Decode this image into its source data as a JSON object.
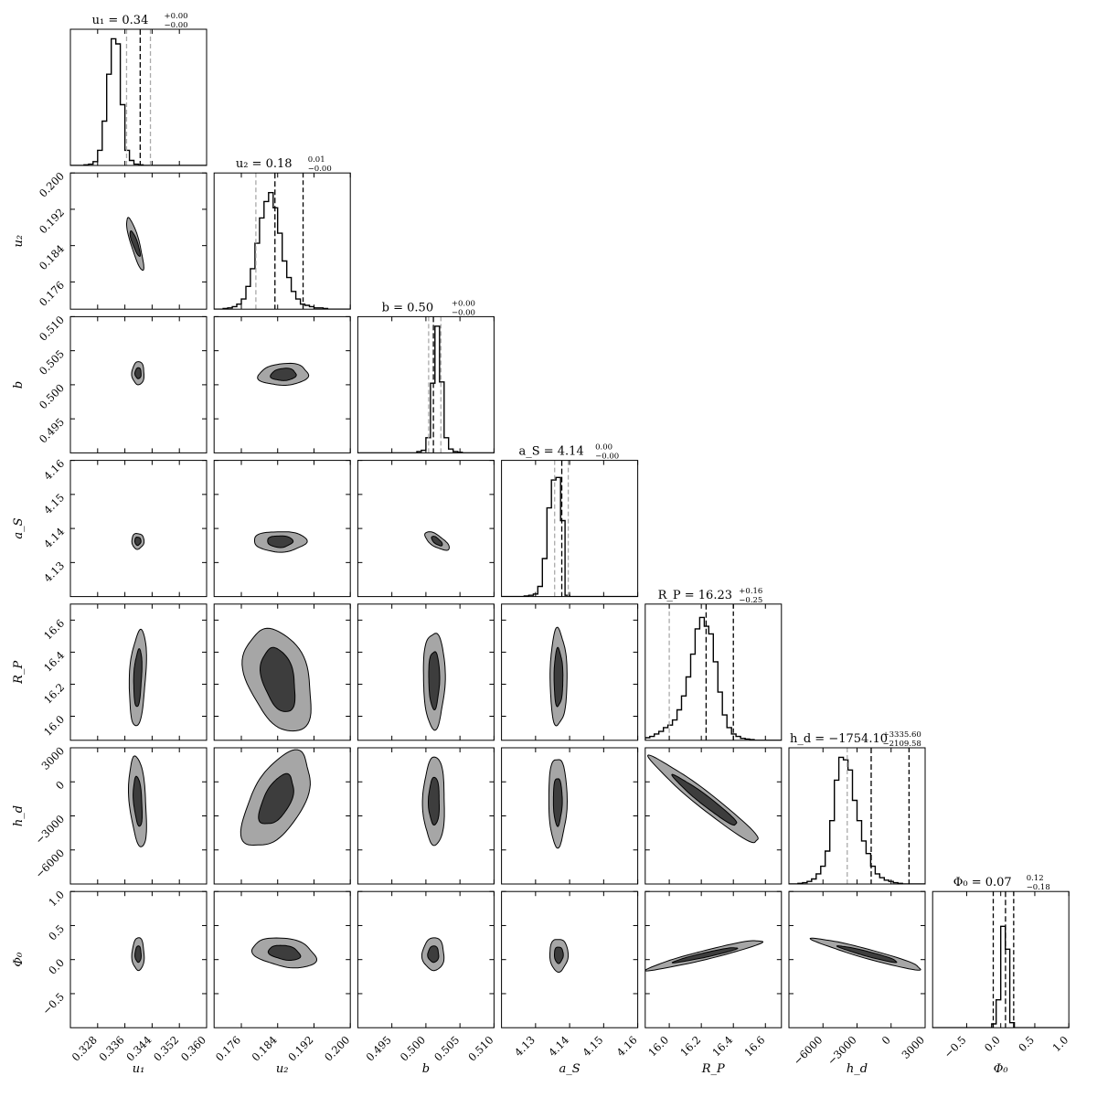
{
  "chart_data": {
    "type": "corner",
    "parameters": [
      {
        "key": "u1",
        "axis_label": "u₁",
        "range": [
          0.32,
          0.36
        ],
        "ticks": [
          "0.328",
          "0.336",
          "0.344",
          "0.352",
          "0.360"
        ],
        "tick_values": [
          0.328,
          0.336,
          0.344,
          0.352,
          0.36
        ],
        "median": 0.34,
        "title": {
          "text": "u₁ = 0.34",
          "plus": "+0.00",
          "minus": "−0.00"
        },
        "marker_lines": {
          "solid_black": [
            0.3405
          ],
          "dashed_gray": [
            0.3365,
            0.3435
          ]
        },
        "histogram": [
          0,
          0,
          0,
          0.005,
          0.01,
          0.03,
          0.12,
          0.35,
          0.72,
          1.0,
          0.96,
          0.48,
          0.12,
          0.04,
          0.01,
          0.005,
          0,
          0,
          0,
          0,
          0,
          0,
          0,
          0,
          0,
          0,
          0,
          0,
          0,
          0
        ]
      },
      {
        "key": "u2",
        "axis_label": "u₂",
        "range": [
          0.17,
          0.2
        ],
        "ticks": [
          "0.176",
          "0.184",
          "0.192",
          "0.200"
        ],
        "tick_values": [
          0.176,
          0.184,
          0.192,
          0.2
        ],
        "median": 0.18,
        "title": {
          "text": "u₂ = 0.18",
          "plus": "0.01",
          "minus": "−0.00"
        },
        "marker_lines": {
          "solid_black": [
            0.1834
          ],
          "dashed_gray": [
            0.1792
          ],
          "dashed_black": [
            0.1896
          ]
        },
        "histogram": [
          0,
          0,
          0.005,
          0.01,
          0.02,
          0.04,
          0.08,
          0.18,
          0.32,
          0.52,
          0.72,
          0.85,
          0.92,
          0.8,
          0.6,
          0.38,
          0.25,
          0.14,
          0.08,
          0.04,
          0.03,
          0.02,
          0.01,
          0.01,
          0.005,
          0,
          0,
          0,
          0,
          0
        ]
      },
      {
        "key": "b",
        "axis_label": "b",
        "range": [
          0.49,
          0.51
        ],
        "ticks": [
          "0.495",
          "0.500",
          "0.505",
          "0.510"
        ],
        "tick_values": [
          0.495,
          0.5,
          0.505,
          0.51
        ],
        "median": 0.5,
        "title": {
          "text": "b = 0.50",
          "plus": "+0.00",
          "minus": "−0.00"
        },
        "marker_lines": {
          "solid_black": [
            0.5011
          ],
          "dashed_gray": [
            0.5004,
            0.5022
          ]
        },
        "histogram": [
          0,
          0,
          0,
          0,
          0,
          0,
          0,
          0,
          0,
          0,
          0,
          0,
          0,
          0.01,
          0.02,
          0.12,
          0.55,
          1.0,
          0.56,
          0.12,
          0.03,
          0.01,
          0.005,
          0,
          0,
          0,
          0,
          0,
          0,
          0
        ]
      },
      {
        "key": "aS",
        "axis_label": "a_S",
        "range": [
          4.12,
          4.16
        ],
        "ticks": [
          "4.13",
          "4.14",
          "4.15",
          "4.16"
        ],
        "tick_values": [
          4.13,
          4.14,
          4.15,
          4.16
        ],
        "median": 4.14,
        "title": {
          "text": "a_S = 4.14",
          "plus": "0.00",
          "minus": "−0.00"
        },
        "marker_lines": {
          "solid_black": [
            4.1377
          ],
          "dashed_gray": [
            4.1356,
            4.1396
          ]
        },
        "histogram": [
          0,
          0,
          0,
          0,
          0,
          0.005,
          0.01,
          0.02,
          0.08,
          0.3,
          0.7,
          0.92,
          0.94,
          0.6,
          0.01,
          0,
          0,
          0,
          0,
          0,
          0,
          0,
          0,
          0,
          0,
          0,
          0,
          0,
          0,
          0
        ]
      },
      {
        "key": "RP",
        "axis_label": "R_P",
        "range": [
          15.85,
          16.7
        ],
        "ticks": [
          "16.0",
          "16.2",
          "16.4",
          "16.6"
        ],
        "tick_values": [
          16.0,
          16.2,
          16.4,
          16.6
        ],
        "median": 16.23,
        "title": {
          "text": "R_P = 16.23",
          "plus": "+0.16",
          "minus": "−0.25"
        },
        "marker_lines": {
          "solid_black": [
            16.23
          ],
          "dashed_gray": [
            16.0
          ],
          "dashed_black": [
            16.4
          ]
        },
        "histogram": [
          0.02,
          0.03,
          0.05,
          0.07,
          0.1,
          0.12,
          0.16,
          0.24,
          0.35,
          0.5,
          0.68,
          0.88,
          0.97,
          0.9,
          0.84,
          0.62,
          0.38,
          0.2,
          0.1,
          0.05,
          0.03,
          0.015,
          0.01,
          0.005,
          0,
          0,
          0,
          0,
          0,
          0
        ]
      },
      {
        "key": "hd",
        "axis_label": "h_d",
        "range": [
          -9000,
          3000
        ],
        "ticks": [
          "−6000",
          "−3000",
          "0",
          "3000"
        ],
        "tick_values": [
          -6000,
          -3000,
          0,
          3000
        ],
        "median": -1754.1,
        "title": {
          "text": "h_d = −1754.10",
          "plus": "+3335.60",
          "minus": "−2109.58"
        },
        "marker_lines": {
          "solid_black": [
            -1754.1
          ],
          "dashed_gray": [
            -3864
          ],
          "dashed_black": [
            1581.5
          ]
        },
        "histogram": [
          0,
          0,
          0.005,
          0.01,
          0.02,
          0.04,
          0.08,
          0.14,
          0.26,
          0.5,
          0.82,
          1.0,
          0.98,
          0.9,
          0.66,
          0.5,
          0.34,
          0.24,
          0.14,
          0.08,
          0.05,
          0.03,
          0.02,
          0.01,
          0.005,
          0,
          0,
          0,
          0,
          0
        ]
      },
      {
        "key": "Phi0",
        "axis_label": "Φ₀",
        "range": [
          -1.0,
          1.0
        ],
        "ticks": [
          "−0.5",
          "0.0",
          "0.5",
          "1.0"
        ],
        "tick_values": [
          -0.5,
          0.0,
          0.5,
          1.0
        ],
        "median": 0.07,
        "title": {
          "text": "Φ₀ = 0.07",
          "plus": "0.12",
          "minus": "−0.18"
        },
        "marker_lines": {
          "solid_black": [
            0.07
          ],
          "dashed_black": [
            -0.11,
            0.19
          ]
        },
        "histogram": [
          0,
          0,
          0,
          0,
          0,
          0,
          0,
          0,
          0,
          0,
          0,
          0,
          0,
          0.03,
          0.22,
          0.8,
          0.62,
          0.04,
          0,
          0,
          0,
          0,
          0,
          0,
          0,
          0,
          0,
          0,
          0,
          0
        ]
      }
    ],
    "y_axis_ticks": {
      "u2": [
        "0.176",
        "0.184",
        "0.192",
        "0.200"
      ],
      "b": [
        "0.495",
        "0.500",
        "0.505",
        "0.510"
      ],
      "aS": [
        "4.13",
        "4.14",
        "4.15",
        "4.16"
      ],
      "RP": [
        "16.0",
        "16.2",
        "16.4",
        "16.6"
      ],
      "hd": [
        "−6000",
        "−3000",
        "0",
        "3000"
      ],
      "Phi0": [
        "−0.5",
        "0.0",
        "0.5",
        "1.0"
      ]
    },
    "contour_levels": [
      "inner (dark gray)",
      "outer (light gray)"
    ],
    "pair_contours": [
      {
        "x": "u1",
        "y": "u2",
        "center": [
          0.339,
          0.1845
        ],
        "outer": [
          0.0025,
          0.0058
        ],
        "inner": [
          0.0015,
          0.0028
        ],
        "corr": -0.85
      },
      {
        "x": "u1",
        "y": "b",
        "center": [
          0.3399,
          0.5017
        ],
        "outer": [
          0.0018,
          0.0017
        ],
        "inner": [
          0.0009,
          0.0008
        ],
        "corr": 0
      },
      {
        "x": "u2",
        "y": "b",
        "center": [
          0.1853,
          0.5015
        ],
        "outer": [
          0.0055,
          0.0016
        ],
        "inner": [
          0.0028,
          0.0009
        ],
        "corr": 0.1
      },
      {
        "x": "b",
        "y": "aS",
        "center": [
          0.5016,
          4.1363
        ],
        "outer": [
          0.0018,
          0.0027
        ],
        "inner": [
          0.0008,
          0.0014
        ],
        "corr": -0.7
      },
      {
        "x": "u1",
        "y": "aS",
        "center": [
          0.3398,
          4.1363
        ],
        "outer": [
          0.0018,
          0.0023
        ],
        "inner": [
          0.0009,
          0.0012
        ],
        "corr": 0
      },
      {
        "x": "u2",
        "y": "aS",
        "center": [
          0.1845,
          4.1362
        ],
        "outer": [
          0.0058,
          0.003
        ],
        "inner": [
          0.0028,
          0.0017
        ],
        "corr": 0
      },
      {
        "x": "u1",
        "y": "RP",
        "center": [
          0.3398,
          16.24
        ],
        "outer": [
          0.0025,
          0.3
        ],
        "inner": [
          0.0012,
          0.18
        ],
        "corr": 0.3
      },
      {
        "x": "u2",
        "y": "RP",
        "center": [
          0.1842,
          16.23
        ],
        "outer": [
          0.0075,
          0.32
        ],
        "inner": [
          0.0038,
          0.2
        ],
        "corr": -0.35
      },
      {
        "x": "b",
        "y": "RP",
        "center": [
          0.5012,
          16.23
        ],
        "outer": [
          0.0016,
          0.3
        ],
        "inner": [
          0.0008,
          0.18
        ],
        "corr": 0
      },
      {
        "x": "aS",
        "y": "RP",
        "center": [
          4.1367,
          16.24
        ],
        "outer": [
          0.0025,
          0.3
        ],
        "inner": [
          0.0013,
          0.18
        ],
        "corr": 0
      },
      {
        "x": "u1",
        "y": "hd",
        "center": [
          0.3398,
          -1700
        ],
        "outer": [
          0.0026,
          4000
        ],
        "inner": [
          0.0013,
          2200
        ],
        "corr": -0.35
      },
      {
        "x": "u2",
        "y": "hd",
        "center": [
          0.1838,
          -1600
        ],
        "outer": [
          0.0075,
          4200
        ],
        "inner": [
          0.0038,
          2200
        ],
        "corr": 0.55
      },
      {
        "x": "b",
        "y": "hd",
        "center": [
          0.5012,
          -1700
        ],
        "outer": [
          0.0016,
          3900
        ],
        "inner": [
          0.0008,
          2100
        ],
        "corr": 0
      },
      {
        "x": "aS",
        "y": "hd",
        "center": [
          4.1365,
          -1700
        ],
        "outer": [
          0.0027,
          3900
        ],
        "inner": [
          0.0013,
          2100
        ],
        "corr": 0
      },
      {
        "x": "RP",
        "y": "hd",
        "center": [
          16.23,
          -1700
        ],
        "outer": [
          0.34,
          3800
        ],
        "inner": [
          0.2,
          2200
        ],
        "corr": -0.97
      },
      {
        "x": "u1",
        "y": "Phi0",
        "center": [
          0.3399,
          0.08
        ],
        "outer": [
          0.0018,
          0.24
        ],
        "inner": [
          0.0009,
          0.12
        ],
        "corr": 0
      },
      {
        "x": "u2",
        "y": "Phi0",
        "center": [
          0.1855,
          0.1
        ],
        "outer": [
          0.007,
          0.22
        ],
        "inner": [
          0.0035,
          0.11
        ],
        "corr": -0.3
      },
      {
        "x": "b",
        "y": "Phi0",
        "center": [
          0.5011,
          0.08
        ],
        "outer": [
          0.0016,
          0.24
        ],
        "inner": [
          0.0008,
          0.12
        ],
        "corr": 0
      },
      {
        "x": "aS",
        "y": "Phi0",
        "center": [
          4.1368,
          0.07
        ],
        "outer": [
          0.0027,
          0.24
        ],
        "inner": [
          0.0013,
          0.12
        ],
        "corr": 0
      },
      {
        "x": "RP",
        "y": "Phi0",
        "center": [
          16.23,
          0.07
        ],
        "outer": [
          0.36,
          0.22
        ],
        "inner": [
          0.2,
          0.11
        ],
        "corr": 0.95
      },
      {
        "x": "hd",
        "y": "Phi0",
        "center": [
          -2000,
          0.08
        ],
        "outer": [
          4800,
          0.23
        ],
        "inner": [
          2600,
          0.12
        ],
        "corr": -0.95
      }
    ]
  }
}
